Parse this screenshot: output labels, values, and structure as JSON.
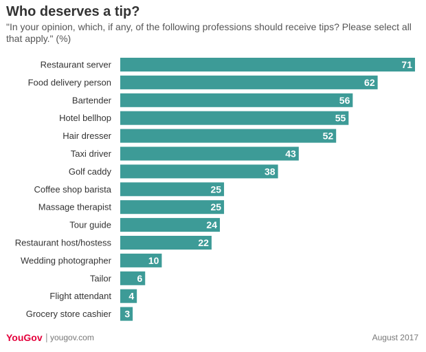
{
  "header": {
    "title": "Who deserves a tip?",
    "subtitle": "\"In your opinion, which, if any, of the following professions should receive tips? Please select all that apply.\" (%)"
  },
  "footer": {
    "logo": "YouGov",
    "separator": "|",
    "site": "yougov.com",
    "date": "August 2017"
  },
  "colors": {
    "bar": "#3d9b97",
    "bar_label": "#ffffff",
    "category_label": "#333333"
  },
  "chart_data": {
    "type": "bar",
    "orientation": "horizontal",
    "categories": [
      "Restaurant server",
      "Food delivery person",
      "Bartender",
      "Hotel bellhop",
      "Hair dresser",
      "Taxi driver",
      "Golf caddy",
      "Coffee shop barista",
      "Massage therapist",
      "Tour guide",
      "Restaurant host/hostess",
      "Wedding photographer",
      "Tailor",
      "Flight attendant",
      "Grocery store cashier"
    ],
    "values": [
      71,
      62,
      56,
      55,
      52,
      43,
      38,
      25,
      25,
      24,
      22,
      10,
      6,
      4,
      3
    ],
    "xlim": [
      0,
      71
    ],
    "grid": false,
    "legend": "none",
    "data_labels": true
  }
}
